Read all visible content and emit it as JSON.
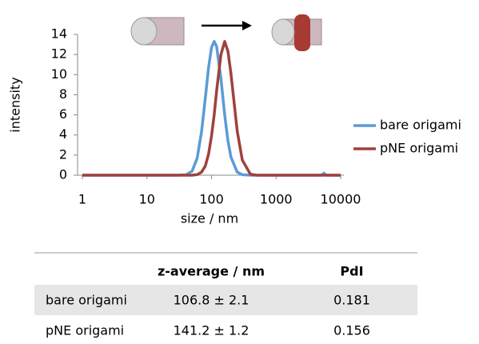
{
  "chart_data": {
    "type": "line",
    "xlabel": "size / nm",
    "ylabel": "intensity",
    "xscale": "log",
    "x": [
      1,
      10,
      30,
      40,
      50,
      60,
      70,
      80,
      90,
      100,
      110,
      120,
      140,
      160,
      180,
      200,
      250,
      300,
      400,
      500,
      1000,
      5000,
      5500,
      6000,
      10000
    ],
    "series": [
      {
        "name": "bare origami",
        "color": "#5b9bd5",
        "values": [
          0,
          0,
          0,
          0.04,
          0.4,
          1.7,
          4.3,
          7.6,
          10.7,
          12.7,
          13.3,
          12.8,
          9.6,
          6.0,
          3.4,
          1.8,
          0.3,
          0.05,
          0,
          0,
          0,
          0,
          0.2,
          0,
          0
        ]
      },
      {
        "name": "pNE origami",
        "color": "#a0413d",
        "values": [
          0,
          0,
          0,
          0,
          0,
          0.06,
          0.3,
          0.9,
          2.1,
          3.9,
          6.0,
          8.4,
          12.0,
          13.3,
          12.3,
          10.1,
          4.4,
          1.5,
          0.1,
          0,
          0,
          0,
          0,
          0,
          0
        ]
      }
    ],
    "xlim": [
      1,
      10000
    ],
    "xticks": [
      1,
      10,
      100,
      1000,
      10000
    ],
    "ylim": [
      0,
      14
    ],
    "yticks": [
      0,
      2,
      4,
      6,
      8,
      10,
      12,
      14
    ],
    "grid": false,
    "legend": "right"
  },
  "table": {
    "columns": [
      "z-average / nm",
      "PdI"
    ],
    "rows": [
      [
        "bare origami",
        "106.8 ± 2.1",
        "0.181"
      ],
      [
        "pNE origami",
        "141.2 ± 1.2",
        "0.156"
      ]
    ]
  }
}
